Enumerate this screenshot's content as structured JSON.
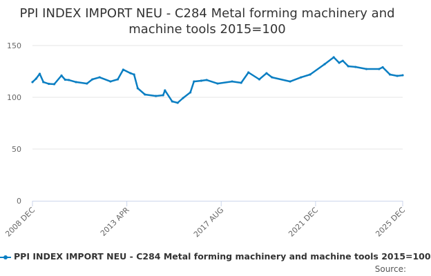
{
  "chart_data": {
    "type": "line",
    "title": "PPI INDEX IMPORT NEU - C284 Metal forming machinery and machine tools 2015=100",
    "xlabel": "",
    "ylabel": "",
    "ylim": [
      0,
      150
    ],
    "yticks": [
      "0",
      "50",
      "100",
      "150"
    ],
    "xticks": [
      {
        "label": "2008 DEC",
        "date": "2008-12"
      },
      {
        "label": "2013 APR",
        "date": "2013-04"
      },
      {
        "label": "2017 AUG",
        "date": "2017-08"
      },
      {
        "label": "2021 DEC",
        "date": "2021-12"
      },
      {
        "label": "2025 DEC",
        "date": "2025-12"
      }
    ],
    "xrange": [
      "2008-12",
      "2025-12"
    ],
    "grid": "horizontal",
    "legend_position": "bottom",
    "color": "#0a7ec2",
    "series": [
      {
        "name": "PPI INDEX IMPORT NEU - C284 Metal forming machinery and machine tools 2015=100",
        "points": [
          [
            "2008-12",
            114.7
          ],
          [
            "2009-02",
            118
          ],
          [
            "2009-04",
            122.7
          ],
          [
            "2009-06",
            114.7
          ],
          [
            "2009-09",
            113
          ],
          [
            "2009-12",
            112.7
          ],
          [
            "2010-04",
            121
          ],
          [
            "2010-06",
            117
          ],
          [
            "2010-08",
            116.7
          ],
          [
            "2010-12",
            114.7
          ],
          [
            "2011-06",
            113.3
          ],
          [
            "2011-09",
            117.3
          ],
          [
            "2012-01",
            119.3
          ],
          [
            "2012-07",
            115.3
          ],
          [
            "2012-11",
            117.3
          ],
          [
            "2013-02",
            126.7
          ],
          [
            "2013-06",
            123.3
          ],
          [
            "2013-08",
            122
          ],
          [
            "2013-10",
            108.7
          ],
          [
            "2014-02",
            102.7
          ],
          [
            "2014-08",
            101.3
          ],
          [
            "2014-12",
            102
          ],
          [
            "2015-01",
            106.7
          ],
          [
            "2015-05",
            96
          ],
          [
            "2015-08",
            94.7
          ],
          [
            "2015-11",
            99.3
          ],
          [
            "2016-03",
            104.7
          ],
          [
            "2016-05",
            115.3
          ],
          [
            "2016-09",
            116
          ],
          [
            "2016-12",
            116.7
          ],
          [
            "2017-06",
            113.3
          ],
          [
            "2018-02",
            115.3
          ],
          [
            "2018-07",
            114
          ],
          [
            "2018-11",
            124
          ],
          [
            "2019-05",
            117.3
          ],
          [
            "2019-09",
            123.3
          ],
          [
            "2019-12",
            119.3
          ],
          [
            "2020-10",
            115.3
          ],
          [
            "2021-04",
            119.3
          ],
          [
            "2021-09",
            122
          ],
          [
            "2022-05",
            132
          ],
          [
            "2022-10",
            138.7
          ],
          [
            "2023-01",
            133.3
          ],
          [
            "2023-03",
            135.3
          ],
          [
            "2023-06",
            130
          ],
          [
            "2023-10",
            129.3
          ],
          [
            "2024-04",
            127.3
          ],
          [
            "2024-11",
            127.3
          ],
          [
            "2025-01",
            129
          ],
          [
            "2025-05",
            122
          ],
          [
            "2025-09",
            120.7
          ],
          [
            "2025-12",
            121.3
          ]
        ]
      }
    ]
  },
  "legend_label": "PPI INDEX IMPORT NEU - C284 Metal forming machinery and machine tools 2015=100",
  "source_label": "Source:"
}
